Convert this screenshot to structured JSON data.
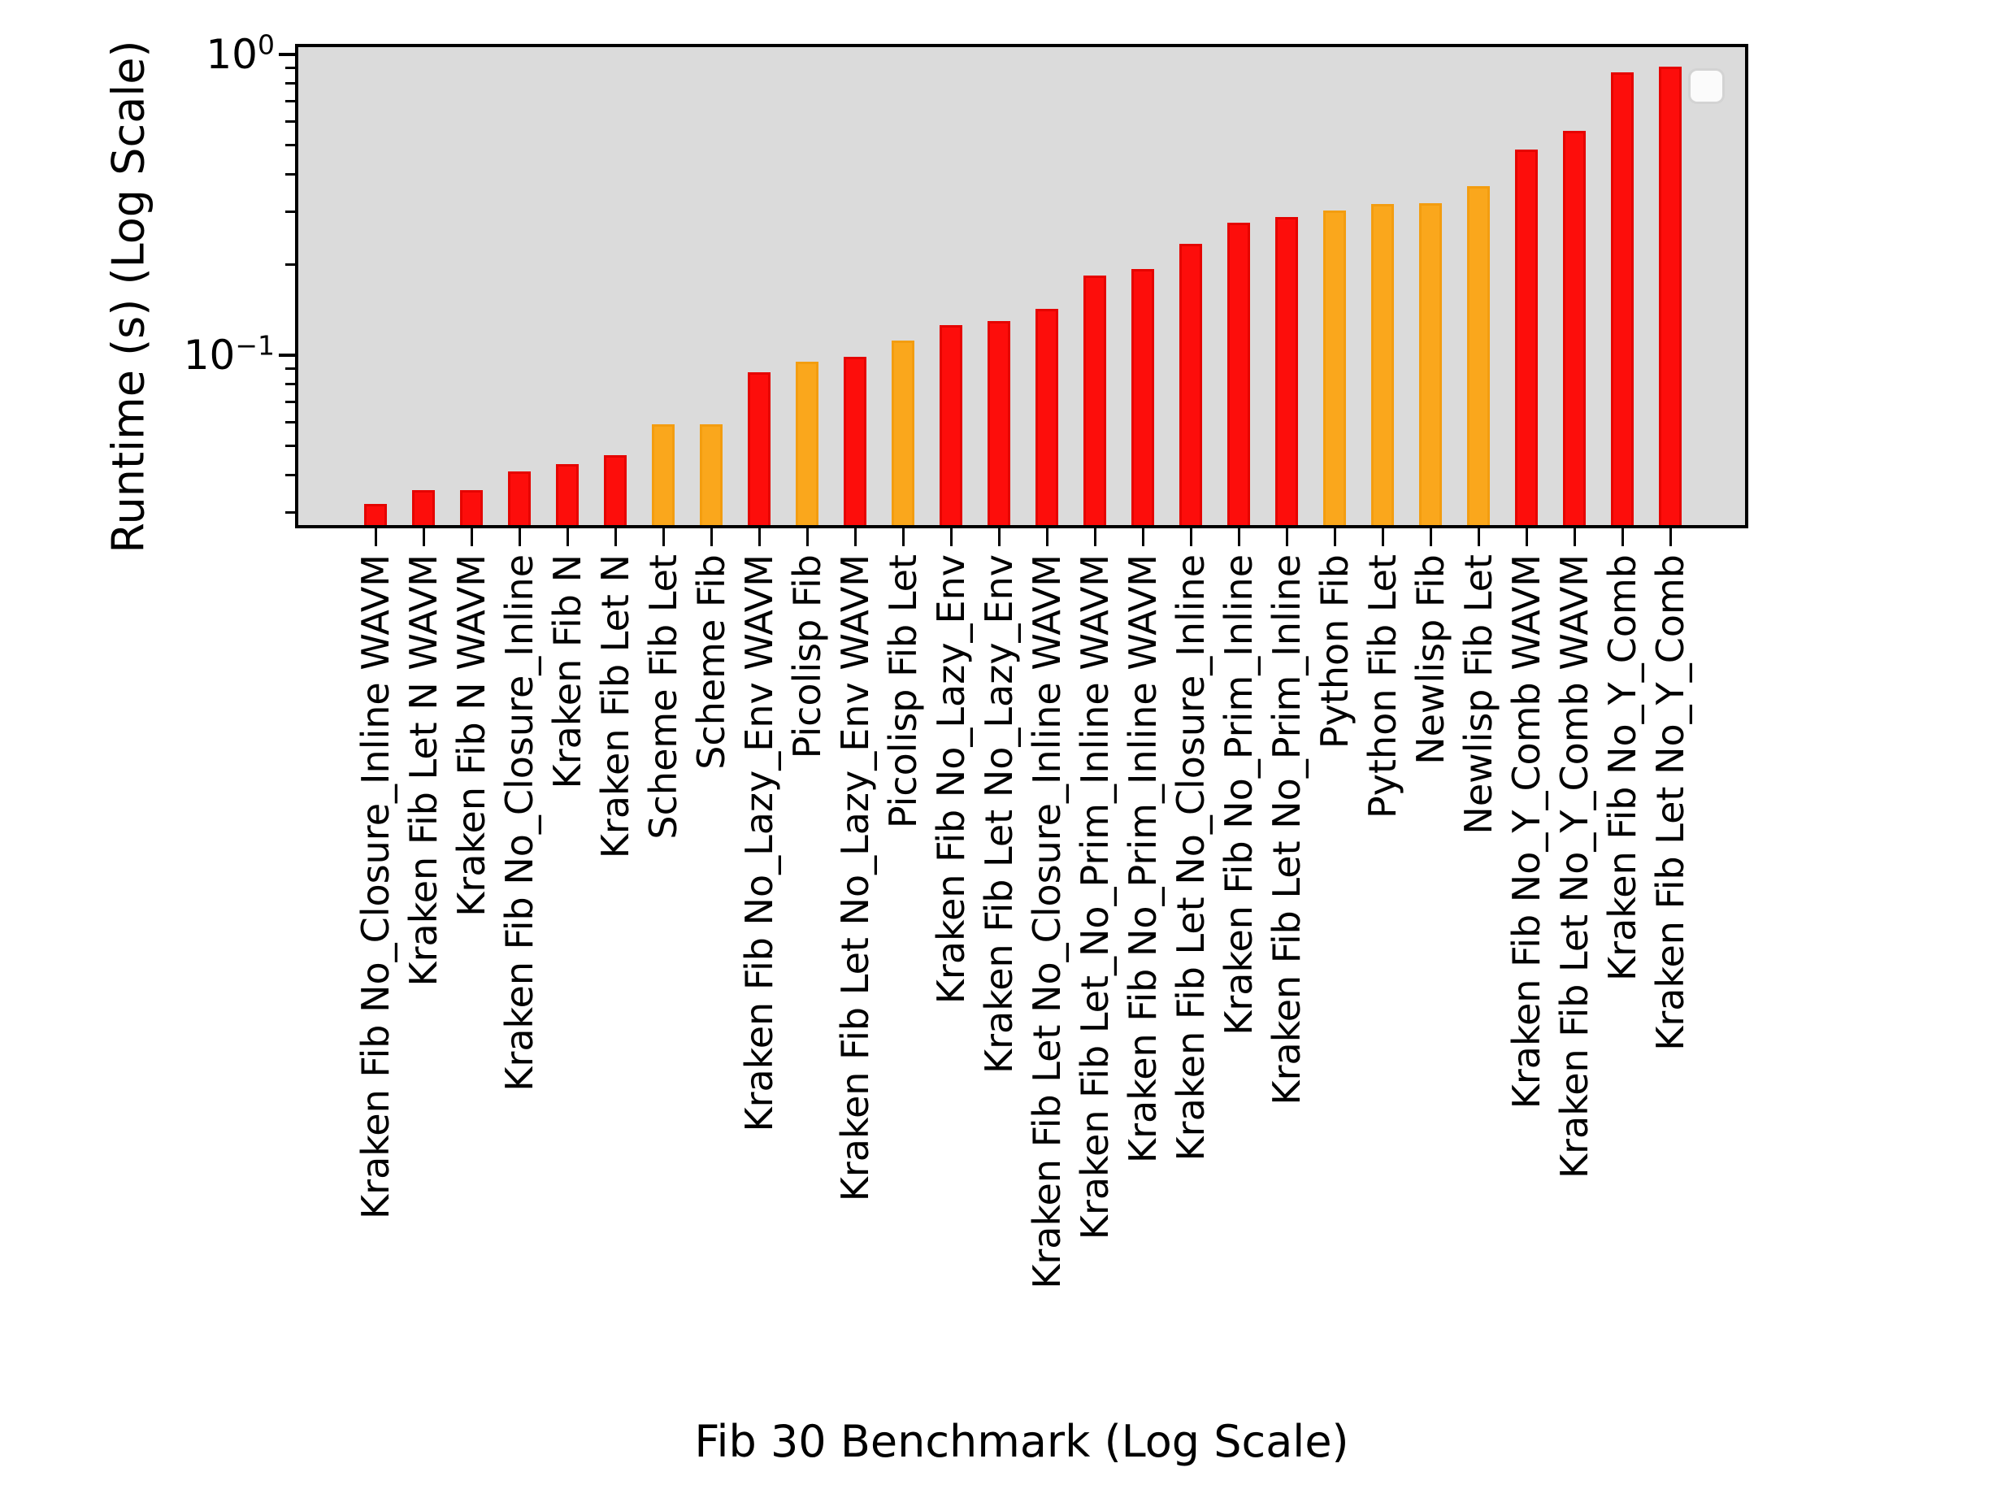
{
  "chart_data": {
    "type": "bar",
    "title": "",
    "xlabel": "Fib 30 Benchmark (Log Scale)",
    "ylabel": "Runtime (s) (Log Scale)",
    "yscale": "log",
    "ylim": [
      0.0266,
      1.084
    ],
    "grid": false,
    "plot_background": "#dbdbdb",
    "categories": [
      "Kraken Fib No_Closure_Inline WAVM",
      "Kraken Fib Let N WAVM",
      "Kraken Fib N WAVM",
      "Kraken Fib No_Closure_Inline",
      "Kraken Fib N",
      "Kraken Fib Let N",
      "Scheme Fib Let",
      "Scheme Fib",
      "Kraken Fib No_Lazy_Env WAVM",
      "Picolisp Fib",
      "Kraken Fib Let No_Lazy_Env WAVM",
      "Picolisp Fib Let",
      "Kraken Fib No_Lazy_Env",
      "Kraken Fib Let No_Lazy_Env",
      "Kraken Fib Let No_Closure_Inline WAVM",
      "Kraken Fib Let_No_Prim_Inline WAVM",
      "Kraken Fib No_Prim_Inline WAVM",
      "Kraken Fib Let No_Closure_Inline",
      "Kraken Fib No_Prim_Inline",
      "Kraken Fib Let No_Prim_Inline",
      "Python Fib",
      "Python Fib Let",
      "Newlisp Fib",
      "Newlisp Fib Let",
      "Kraken Fib No_Y_Comb WAVM",
      "Kraken Fib Let No_Y_Comb WAVM",
      "Kraken Fib No_Y_Comb",
      "Kraken Fib Let No_Y_Comb"
    ],
    "values": [
      0.032,
      0.0355,
      0.0355,
      0.041,
      0.0435,
      0.0465,
      0.059,
      0.059,
      0.088,
      0.095,
      0.099,
      0.112,
      0.126,
      0.13,
      0.143,
      0.184,
      0.193,
      0.235,
      0.276,
      0.288,
      0.303,
      0.318,
      0.32,
      0.365,
      0.482,
      0.558,
      0.872,
      0.91
    ],
    "bar_colors": [
      "red",
      "red",
      "red",
      "red",
      "red",
      "red",
      "orange",
      "orange",
      "red",
      "orange",
      "red",
      "orange",
      "red",
      "red",
      "red",
      "red",
      "red",
      "red",
      "red",
      "red",
      "orange",
      "orange",
      "orange",
      "orange",
      "red",
      "red",
      "red",
      "red"
    ],
    "palette": {
      "red": {
        "fill": "#fd0d0b",
        "edge": "#e50400"
      },
      "orange": {
        "fill": "#faa71c",
        "edge": "#f39d10"
      }
    },
    "y_ticks": [
      {
        "value": 1,
        "base": "10",
        "exp": "0"
      },
      {
        "value": 0.1,
        "base": "10",
        "exp": "−1"
      }
    ],
    "y_minor_ticks": [
      0.9,
      0.8,
      0.7,
      0.6,
      0.5,
      0.4,
      0.3,
      0.2,
      0.09,
      0.08,
      0.07,
      0.06,
      0.05,
      0.04,
      0.03
    ],
    "legend": {
      "visible": true,
      "entries": []
    }
  }
}
